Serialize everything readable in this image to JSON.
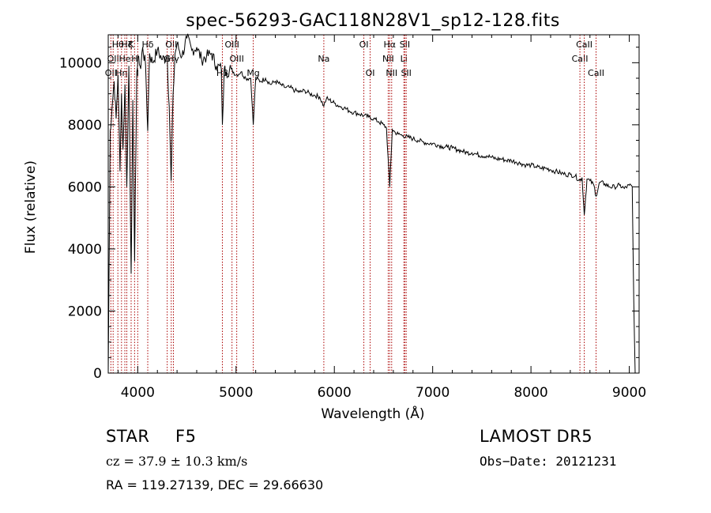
{
  "chart_data": {
    "type": "line",
    "title": "spec-56293-GAC118N28V1_sp12-128.fits",
    "xlabel": "Wavelength (Å)",
    "ylabel": "Flux (relative)",
    "xlim": [
      3700,
      9100
    ],
    "ylim": [
      0,
      10900
    ],
    "xticks": [
      4000,
      5000,
      6000,
      7000,
      8000,
      9000
    ],
    "yticks": [
      0,
      2000,
      4000,
      6000,
      8000,
      10000
    ],
    "grid": false,
    "line_color": "#000000",
    "marker_color": "#aa0000",
    "series": [
      {
        "x": [
          3700,
          3720,
          3740,
          3760,
          3780,
          3800,
          3820,
          3835,
          3850,
          3870,
          3889,
          3910,
          3933,
          3950,
          3968,
          3990,
          4010,
          4030,
          4050,
          4080,
          4102,
          4120,
          4150,
          4200,
          4250,
          4300,
          4320,
          4340,
          4360,
          4380,
          4400,
          4450,
          4500,
          4550,
          4600,
          4650,
          4700,
          4750,
          4800,
          4850,
          4861,
          4880,
          4900,
          4950,
          5000,
          5050,
          5100,
          5150,
          5175,
          5200,
          5250,
          5300,
          5350,
          5400,
          5450,
          5500,
          5550,
          5600,
          5650,
          5700,
          5750,
          5800,
          5850,
          5893,
          5920,
          5950,
          6000,
          6050,
          6100,
          6150,
          6200,
          6250,
          6300,
          6350,
          6400,
          6450,
          6500,
          6530,
          6563,
          6590,
          6620,
          6650,
          6700,
          6750,
          6800,
          6850,
          6900,
          6950,
          7000,
          7050,
          7100,
          7150,
          7200,
          7250,
          7300,
          7350,
          7400,
          7450,
          7500,
          7550,
          7600,
          7650,
          7700,
          7750,
          7800,
          7850,
          7900,
          7950,
          8000,
          8050,
          8100,
          8150,
          8200,
          8250,
          8300,
          8350,
          8400,
          8450,
          8498,
          8520,
          8542,
          8570,
          8600,
          8640,
          8662,
          8700,
          8750,
          8800,
          8850,
          8900,
          8950,
          9000,
          9030,
          9045,
          9060
        ],
        "y": [
          0,
          7800,
          8600,
          9400,
          8200,
          9600,
          6500,
          9000,
          7200,
          9300,
          6000,
          9900,
          3200,
          8800,
          3600,
          9700,
          10200,
          9800,
          10500,
          9900,
          7800,
          10300,
          10000,
          10400,
          10100,
          10200,
          8600,
          6200,
          9000,
          10300,
          10600,
          10200,
          10800,
          10400,
          10500,
          10100,
          10200,
          10300,
          9900,
          9800,
          8000,
          9800,
          9700,
          9800,
          9600,
          9700,
          9500,
          9500,
          8000,
          9500,
          9400,
          9500,
          9300,
          9400,
          9300,
          9200,
          9200,
          9100,
          9050,
          9100,
          9000,
          8950,
          8900,
          8600,
          8850,
          8800,
          8700,
          8600,
          8550,
          8450,
          8400,
          8350,
          8300,
          8250,
          8200,
          8100,
          8000,
          7900,
          6000,
          7850,
          7750,
          7700,
          7650,
          7600,
          7550,
          7500,
          7450,
          7400,
          7400,
          7350,
          7300,
          7280,
          7250,
          7200,
          7150,
          7100,
          7100,
          7050,
          7000,
          7000,
          6950,
          6900,
          6900,
          6850,
          6850,
          6800,
          6750,
          6700,
          6700,
          6650,
          6600,
          6600,
          6550,
          6500,
          6450,
          6400,
          6400,
          6350,
          6200,
          6300,
          5100,
          6250,
          6200,
          6050,
          5700,
          6150,
          6100,
          6000,
          6000,
          6050,
          5950,
          6050,
          6000,
          2400,
          0
        ]
      }
    ],
    "line_markers": [
      {
        "x": 3727,
        "label": "OII",
        "row": 2
      },
      {
        "x": 3750,
        "label": "OII",
        "row": 1
      },
      {
        "x": 3798,
        "label": "Hθ",
        "row": 0
      },
      {
        "x": 3835,
        "label": "Hη",
        "row": 2
      },
      {
        "x": 3869,
        "label": "He",
        "row": 1
      },
      {
        "x": 3889,
        "label": "Hζ",
        "row": 0
      },
      {
        "x": 3933,
        "label": "K",
        "row": 0
      },
      {
        "x": 3968,
        "label": "H",
        "row": 1
      },
      {
        "x": 4000,
        "label": "I",
        "row": 2
      },
      {
        "x": 4102,
        "label": "Hδ",
        "row": 0
      },
      {
        "x": 4300,
        "label": "G",
        "row": 1
      },
      {
        "x": 4341,
        "label": "OII",
        "row": 0
      },
      {
        "x": 4363,
        "label": "Hγ",
        "row": 1
      },
      {
        "x": 4861,
        "label": "Hβ",
        "row": 2
      },
      {
        "x": 4959,
        "label": "OIII",
        "row": 0
      },
      {
        "x": 5007,
        "label": "OIII",
        "row": 1
      },
      {
        "x": 5175,
        "label": "Mg",
        "row": 2
      },
      {
        "x": 5893,
        "label": "Na",
        "row": 1
      },
      {
        "x": 6300,
        "label": "OI",
        "row": 0
      },
      {
        "x": 6364,
        "label": "OI",
        "row": 2
      },
      {
        "x": 6548,
        "label": "NII",
        "row": 1
      },
      {
        "x": 6563,
        "label": "Hα",
        "row": 0
      },
      {
        "x": 6583,
        "label": "NII",
        "row": 2
      },
      {
        "x": 6707,
        "label": "Li",
        "row": 1
      },
      {
        "x": 6717,
        "label": "SII",
        "row": 0
      },
      {
        "x": 6731,
        "label": "SII",
        "row": 2
      },
      {
        "x": 8498,
        "label": "CaII",
        "row": 1
      },
      {
        "x": 8542,
        "label": "CaII",
        "row": 0
      },
      {
        "x": 8662,
        "label": "CaII",
        "row": 2
      }
    ]
  },
  "info": {
    "object_class": "STAR",
    "subclass": "F5",
    "survey": "LAMOST DR5",
    "cz": "cz = 37.9 ± 10.3 km/s",
    "obs_date": "Obs−Date: 20121231",
    "coords": "RA = 119.27139, DEC =  29.66630"
  }
}
